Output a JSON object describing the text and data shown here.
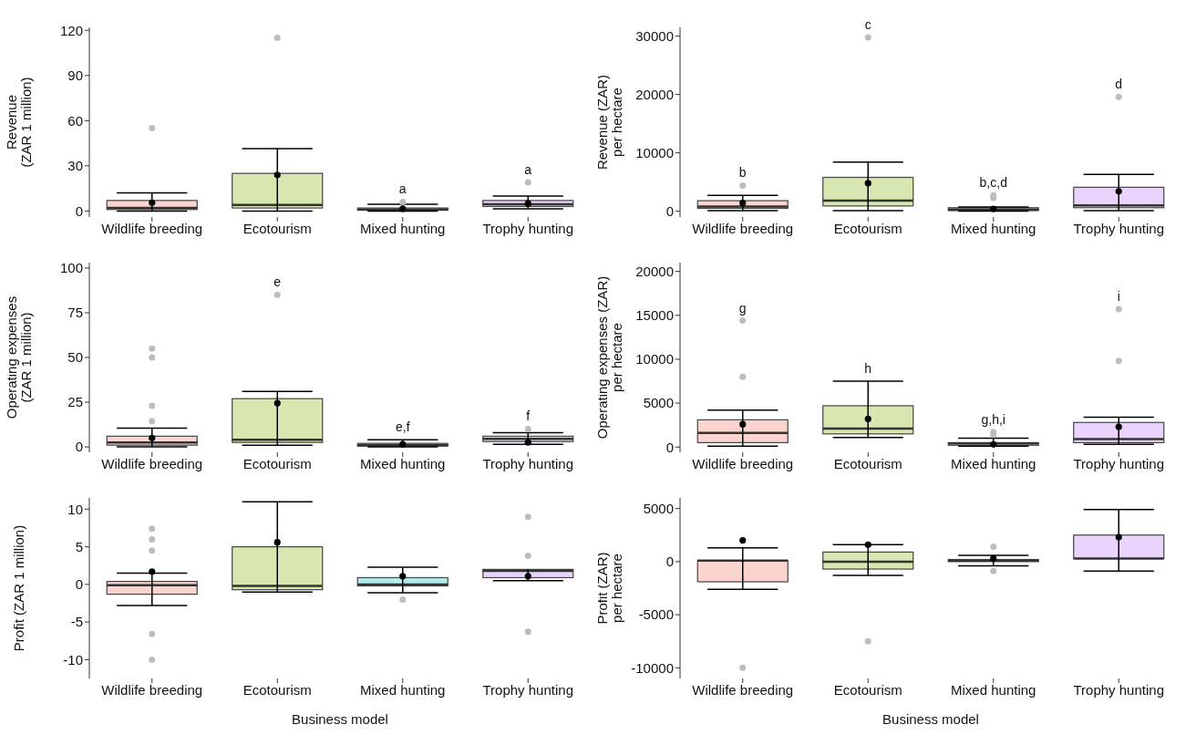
{
  "chart_data": [
    {
      "type": "box",
      "categories": [
        "Wildlife breeding",
        "Ecotourism",
        "Mixed hunting",
        "Trophy hunting"
      ],
      "colors": [
        "#fbd3cf",
        "#d8e7b0",
        "#b2ecec",
        "#ead4fb"
      ],
      "ylabel": "Revenue\n(ZAR 1 million)",
      "ylim": [
        -4,
        122
      ],
      "yticks": [
        0,
        30,
        60,
        90,
        120
      ],
      "boxes": [
        {
          "low": 0,
          "q1": 1,
          "median": 2,
          "q3": 7,
          "high": 12,
          "mean": 5.5,
          "outliers": [
            55
          ]
        },
        {
          "low": 0,
          "q1": 2,
          "median": 4,
          "q3": 25,
          "high": 41.5,
          "mean": 24,
          "outliers": [
            115
          ]
        },
        {
          "low": 0,
          "q1": 0.5,
          "median": 1,
          "q3": 2,
          "high": 4.5,
          "mean": 1.5,
          "outliers": [
            6
          ]
        },
        {
          "low": 1.5,
          "q1": 3,
          "median": 4.5,
          "q3": 7,
          "high": 10,
          "mean": 5,
          "outliers": [
            19
          ]
        }
      ],
      "annotations": [
        null,
        null,
        "a",
        "a"
      ]
    },
    {
      "type": "box",
      "categories": [
        "Wildlife breeding",
        "Ecotourism",
        "Mixed hunting",
        "Trophy hunting"
      ],
      "colors": [
        "#fbd3cf",
        "#d8e7b0",
        "#b2ecec",
        "#ead4fb"
      ],
      "ylabel": "Revenue (ZAR)\nper hectare",
      "ylim": [
        -1000,
        31500
      ],
      "yticks": [
        0,
        10000,
        20000,
        30000
      ],
      "boxes": [
        {
          "low": 100,
          "q1": 500,
          "median": 800,
          "q3": 1800,
          "high": 2700,
          "mean": 1400,
          "outliers": [
            4400
          ]
        },
        {
          "low": 100,
          "q1": 900,
          "median": 1800,
          "q3": 5800,
          "high": 8400,
          "mean": 4800,
          "outliers": [
            29800
          ]
        },
        {
          "low": 0,
          "q1": 100,
          "median": 300,
          "q3": 600,
          "high": 700,
          "mean": 400,
          "outliers": [
            2300,
            2700
          ]
        },
        {
          "low": 100,
          "q1": 600,
          "median": 1000,
          "q3": 4100,
          "high": 6300,
          "mean": 3400,
          "outliers": [
            19600
          ]
        }
      ],
      "annotations": [
        "b",
        "c",
        "b,c,d",
        "d"
      ]
    },
    {
      "type": "box",
      "categories": [
        "Wildlife breeding",
        "Ecotourism",
        "Mixed hunting",
        "Trophy hunting"
      ],
      "colors": [
        "#fbd3cf",
        "#d8e7b0",
        "#b2ecec",
        "#ead4fb"
      ],
      "ylabel": "Operating expenses\n(ZAR 1 million)",
      "ylim": [
        -3,
        103
      ],
      "yticks": [
        0,
        25,
        50,
        75,
        100
      ],
      "boxes": [
        {
          "low": 0,
          "q1": 1,
          "median": 2.5,
          "q3": 6,
          "high": 10.5,
          "mean": 5,
          "outliers": [
            14.5,
            23,
            50,
            55
          ]
        },
        {
          "low": 1,
          "q1": 2.5,
          "median": 4,
          "q3": 27,
          "high": 31,
          "mean": 24.5,
          "outliers": [
            85
          ]
        },
        {
          "low": 0,
          "q1": 0.5,
          "median": 1,
          "q3": 2,
          "high": 4,
          "mean": 1.5
        },
        {
          "low": 1.5,
          "q1": 3,
          "median": 4.5,
          "q3": 6,
          "high": 8,
          "mean": 2.5,
          "outliers": [
            10
          ]
        }
      ],
      "annotations": [
        null,
        "e",
        "e,f",
        "f"
      ]
    },
    {
      "type": "box",
      "categories": [
        "Wildlife breeding",
        "Ecotourism",
        "Mixed hunting",
        "Trophy hunting"
      ],
      "colors": [
        "#fbd3cf",
        "#d8e7b0",
        "#b2ecec",
        "#ead4fb"
      ],
      "ylabel": "Operating expenses (ZAR)\nper hectare",
      "ylim": [
        -600,
        21000
      ],
      "yticks": [
        0,
        5000,
        10000,
        15000,
        20000
      ],
      "boxes": [
        {
          "low": 100,
          "q1": 500,
          "median": 1600,
          "q3": 3100,
          "high": 4200,
          "mean": 2600,
          "outliers": [
            8000,
            14400
          ]
        },
        {
          "low": 1100,
          "q1": 1500,
          "median": 2100,
          "q3": 4700,
          "high": 7500,
          "mean": 3200
        },
        {
          "low": 100,
          "q1": 200,
          "median": 400,
          "q3": 500,
          "high": 1000,
          "mean": 300,
          "outliers": [
            1400,
            1700
          ]
        },
        {
          "low": 300,
          "q1": 500,
          "median": 900,
          "q3": 2800,
          "high": 3400,
          "mean": 2300,
          "outliers": [
            9800,
            15700
          ]
        }
      ],
      "annotations": [
        "g",
        "h",
        "g,h,i",
        "i"
      ]
    },
    {
      "type": "box",
      "categories": [
        "Wildlife breeding",
        "Ecotourism",
        "Mixed hunting",
        "Trophy hunting"
      ],
      "colors": [
        "#fbd3cf",
        "#d8e7b0",
        "#b2ecec",
        "#ead4fb"
      ],
      "ylabel": "Profit (ZAR 1 million)",
      "xlabel": "Business model",
      "ylim": [
        -12.5,
        11.5
      ],
      "yticks": [
        -10,
        -5,
        0,
        5,
        10
      ],
      "boxes": [
        {
          "low": -2.8,
          "q1": -1.3,
          "median": -0.1,
          "q3": 0.4,
          "high": 1.5,
          "mean": 1.7,
          "outliers": [
            -10,
            -6.6,
            4.5,
            6,
            7.4
          ]
        },
        {
          "low": -1,
          "q1": -0.7,
          "median": -0.2,
          "q3": 5,
          "high": 11,
          "mean": 5.6
        },
        {
          "low": -1.1,
          "q1": -0.2,
          "median": 0,
          "q3": 0.9,
          "high": 2.3,
          "mean": 1.1,
          "outliers": [
            -2
          ]
        },
        {
          "low": 0.5,
          "q1": 0.9,
          "median": 1.8,
          "q3": 2,
          "high": 2,
          "mean": 1.1,
          "outliers": [
            -6.3,
            3.8,
            9
          ]
        }
      ]
    },
    {
      "type": "box",
      "categories": [
        "Wildlife breeding",
        "Ecotourism",
        "Mixed hunting",
        "Trophy hunting"
      ],
      "colors": [
        "#fbd3cf",
        "#d8e7b0",
        "#b2ecec",
        "#ead4fb"
      ],
      "ylabel": "Profit (ZAR)\nper hectare",
      "xlabel": "Business model",
      "ylim": [
        -11000,
        6000
      ],
      "yticks": [
        -10000,
        -5000,
        0,
        5000
      ],
      "boxes": [
        {
          "low": -2600,
          "q1": -1900,
          "median": 100,
          "q3": 100,
          "high": 1300,
          "mean": 2000,
          "outliers": [
            -10000
          ]
        },
        {
          "low": -1300,
          "q1": -700,
          "median": 0,
          "q3": 900,
          "high": 1600,
          "mean": 1600,
          "outliers": [
            -7500
          ]
        },
        {
          "low": -400,
          "q1": 0,
          "median": 100,
          "q3": 200,
          "high": 600,
          "mean": 300,
          "outliers": [
            -900,
            1400
          ]
        },
        {
          "low": -900,
          "q1": 300,
          "median": 300,
          "q3": 2500,
          "high": 4900,
          "mean": 2300
        }
      ]
    }
  ]
}
